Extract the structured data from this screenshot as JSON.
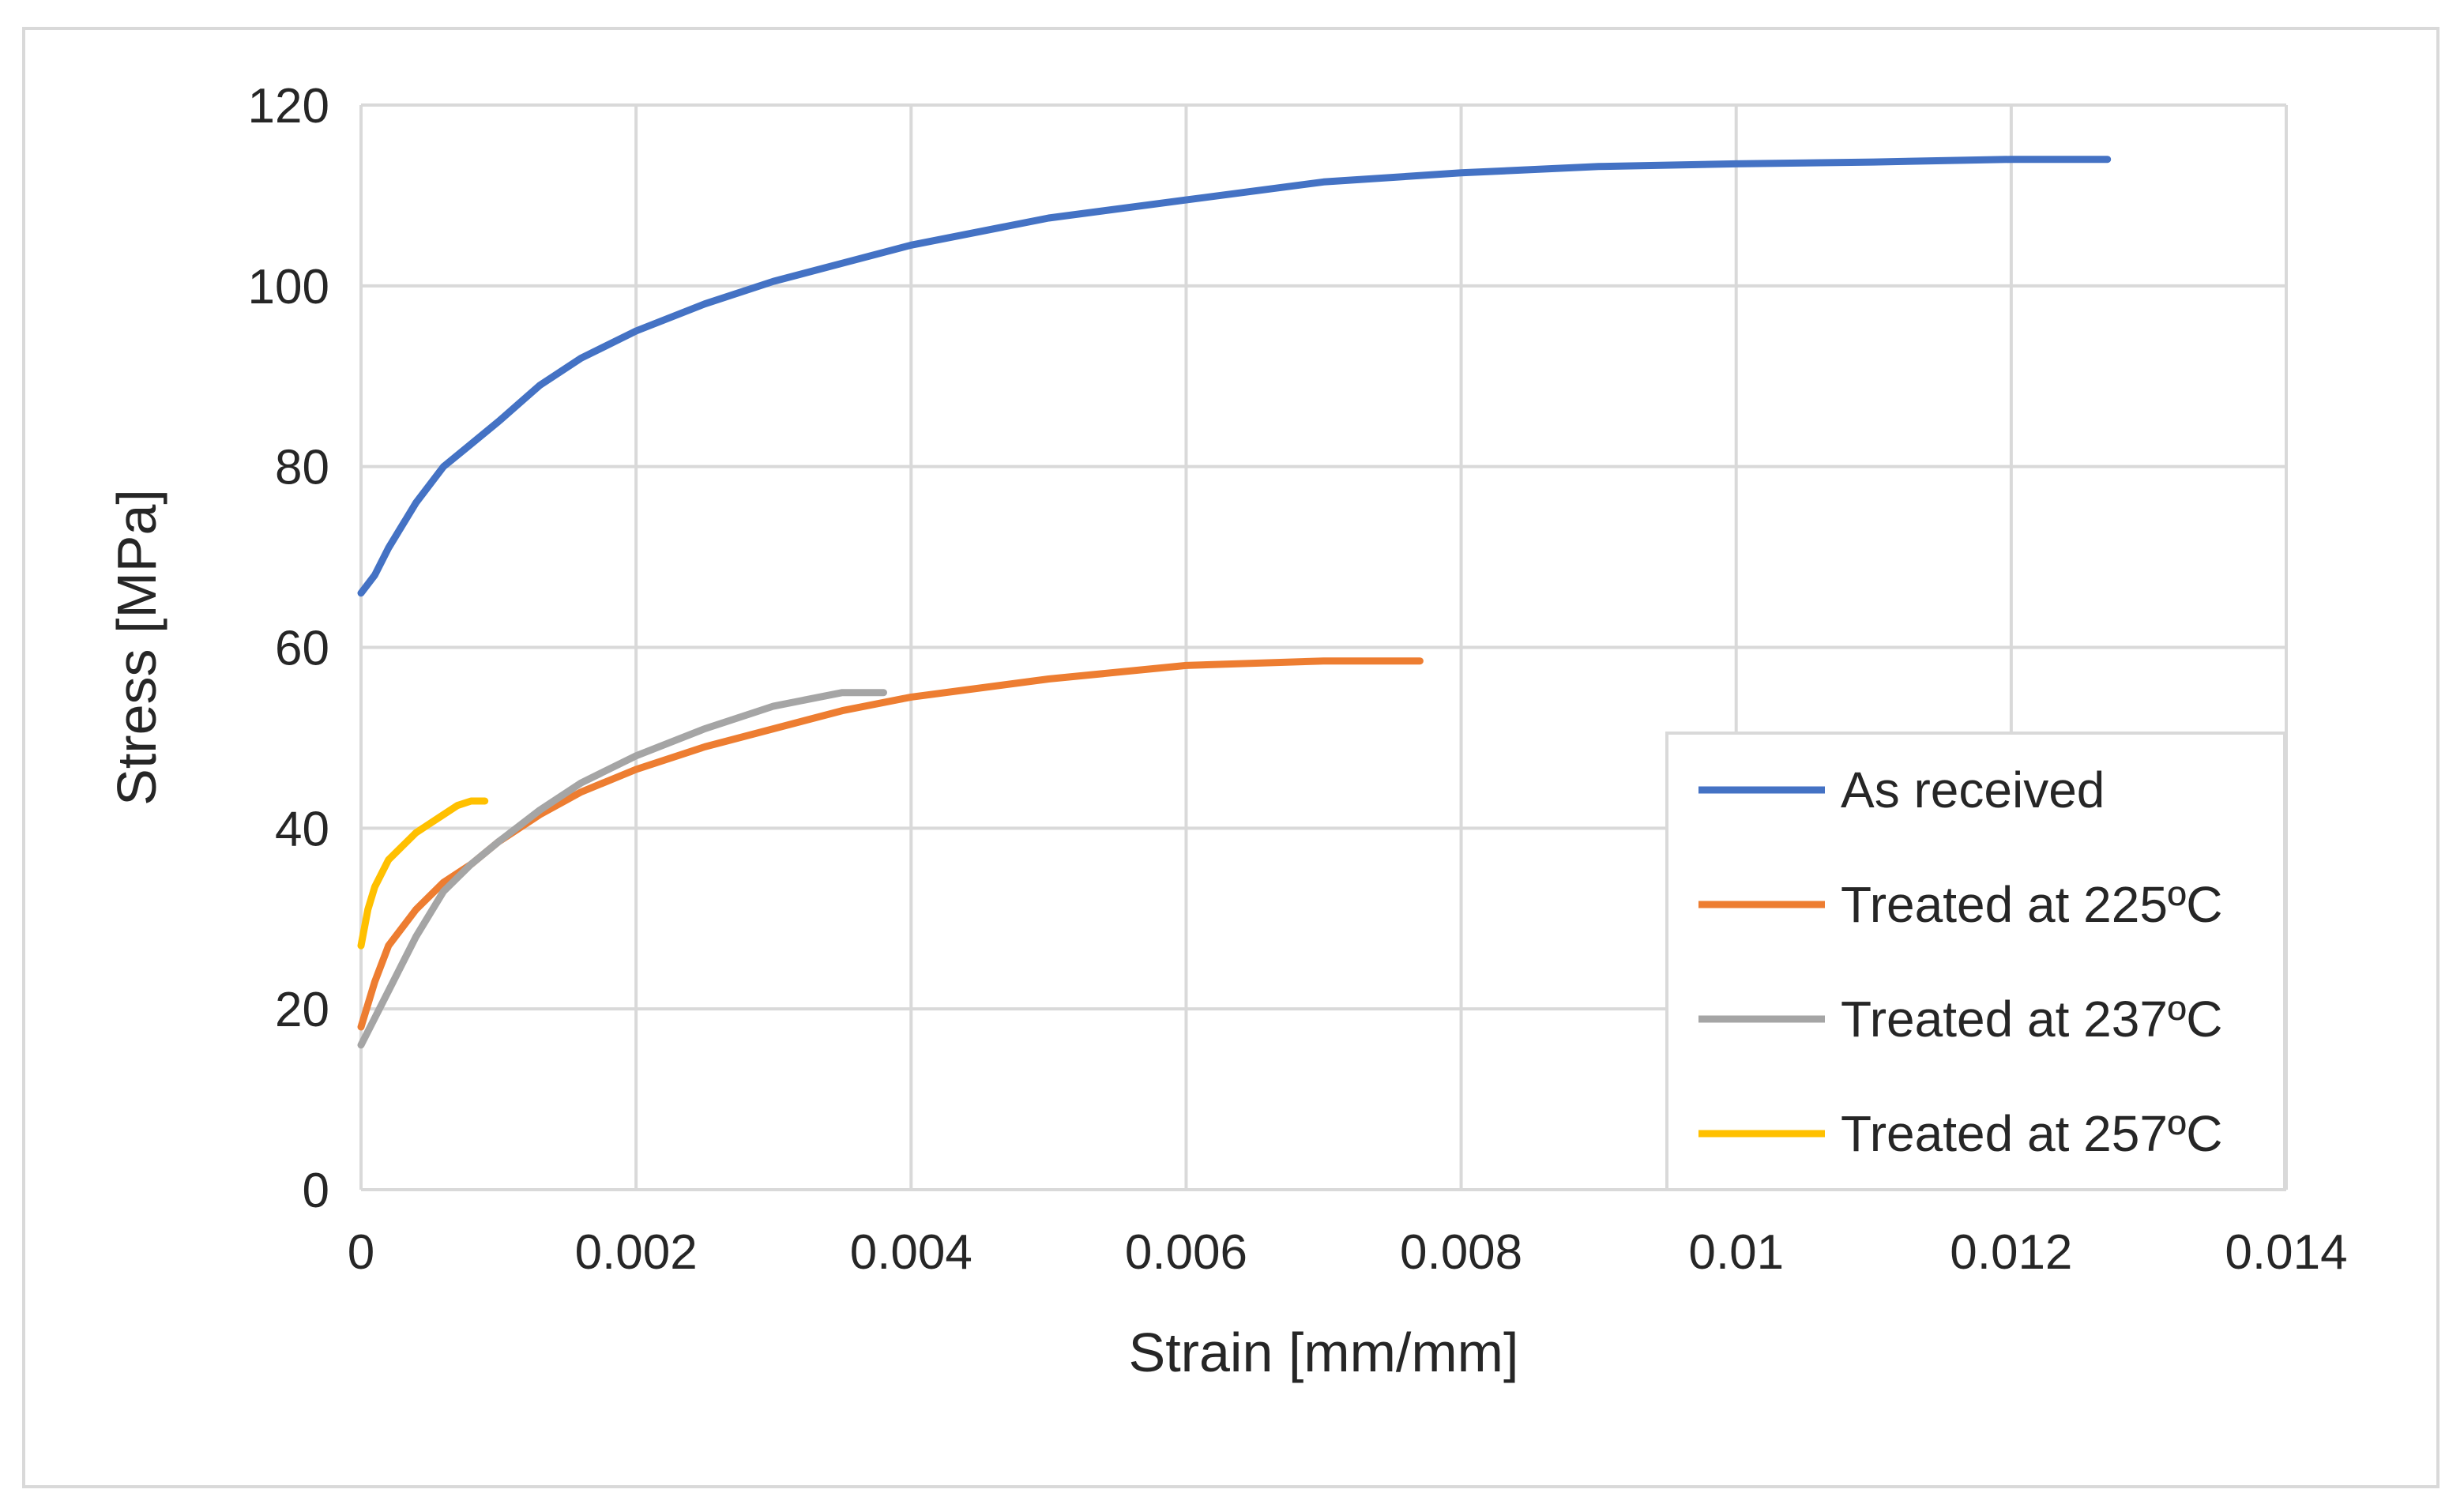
{
  "chart_data": {
    "type": "line",
    "title": "",
    "xlabel": "Strain [mm/mm]",
    "ylabel": "Stress [MPa]",
    "xlim": [
      0,
      0.014
    ],
    "ylim": [
      0,
      120
    ],
    "x_ticks": [
      0,
      0.002,
      0.004,
      0.006,
      0.008,
      0.01,
      0.012,
      0.014
    ],
    "x_tick_labels": [
      "0",
      "0.002",
      "0.004",
      "0.006",
      "0.008",
      "0.01",
      "0.012",
      "0.014"
    ],
    "y_ticks": [
      0,
      20,
      40,
      60,
      80,
      100,
      120
    ],
    "y_tick_labels": [
      "0",
      "20",
      "40",
      "60",
      "80",
      "100",
      "120"
    ],
    "grid": true,
    "legend_position": "bottom-right",
    "series": [
      {
        "name": "As received",
        "color": "#4472c4",
        "x": [
          0,
          0.0001,
          0.0002,
          0.0004,
          0.0006,
          0.0008,
          0.001,
          0.0013,
          0.0016,
          0.002,
          0.0025,
          0.003,
          0.0035,
          0.004,
          0.005,
          0.006,
          0.007,
          0.008,
          0.009,
          0.01,
          0.011,
          0.012,
          0.0127
        ],
        "y": [
          66,
          68,
          71,
          76,
          80,
          82.5,
          85,
          89,
          92,
          95,
          98,
          100.5,
          102.5,
          104.5,
          107.5,
          109.5,
          111.5,
          112.5,
          113.2,
          113.5,
          113.7,
          114,
          114
        ]
      },
      {
        "name": "Treated at 225ºC",
        "color": "#ed7d31",
        "x": [
          0,
          0.0001,
          0.0002,
          0.0004,
          0.0006,
          0.0008,
          0.001,
          0.0013,
          0.0016,
          0.002,
          0.0025,
          0.003,
          0.0035,
          0.004,
          0.005,
          0.006,
          0.007,
          0.0077
        ],
        "y": [
          18,
          23,
          27,
          31,
          34,
          36,
          38.5,
          41.5,
          44,
          46.5,
          49,
          51,
          53,
          54.5,
          56.5,
          58,
          58.5,
          58.5
        ]
      },
      {
        "name": "Treated at 237ºC",
        "color": "#a5a5a5",
        "x": [
          0,
          0.0001,
          0.0002,
          0.0004,
          0.0006,
          0.0008,
          0.001,
          0.0013,
          0.0016,
          0.002,
          0.0025,
          0.003,
          0.0035,
          0.0038
        ],
        "y": [
          16,
          19,
          22,
          28,
          33,
          36,
          38.5,
          42,
          45,
          48,
          51,
          53.5,
          55,
          55
        ]
      },
      {
        "name": "Treated at 257ºC",
        "color": "#ffc000",
        "x": [
          0,
          5e-05,
          0.0001,
          0.0002,
          0.0003,
          0.0004,
          0.0005,
          0.0006,
          0.0007,
          0.0008,
          0.0009
        ],
        "y": [
          27,
          31,
          33.5,
          36.5,
          38,
          39.5,
          40.5,
          41.5,
          42.5,
          43,
          43
        ]
      }
    ]
  }
}
